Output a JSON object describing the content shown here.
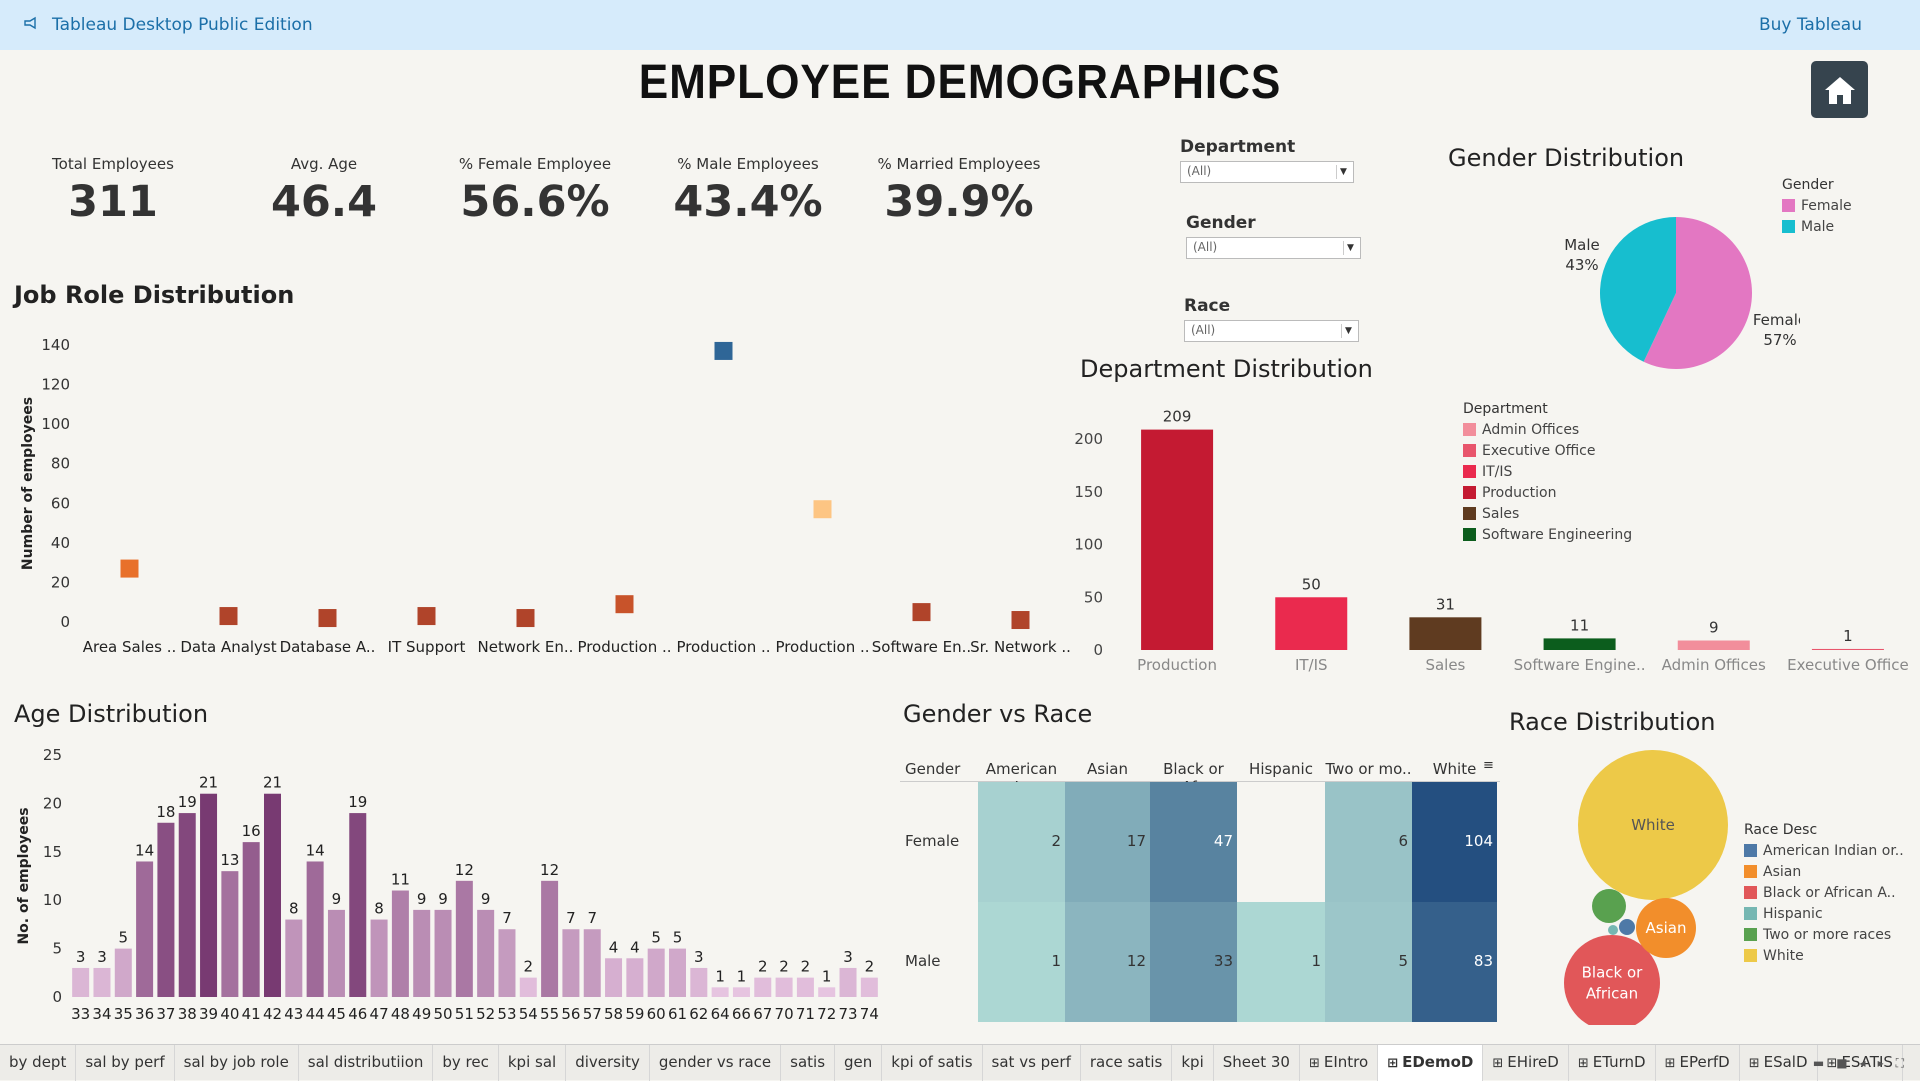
{
  "topbar": {
    "app_title": "Tableau Desktop Public Edition",
    "buy_label": "Buy Tableau"
  },
  "dashboard": {
    "title": "EMPLOYEE DEMOGRAPHICS"
  },
  "kpis": [
    {
      "label": "Total Employees",
      "value": "311"
    },
    {
      "label": "Avg. Age",
      "value": "46.4"
    },
    {
      "label": "% Female Employee",
      "value": "56.6%"
    },
    {
      "label": "% Male Employees",
      "value": "43.4%"
    },
    {
      "label": "% Married Employees",
      "value": "39.9%"
    }
  ],
  "filters": [
    {
      "label": "Department",
      "value": "(All)"
    },
    {
      "label": "Gender",
      "value": "(All)"
    },
    {
      "label": "Race",
      "value": "(All)"
    }
  ],
  "sections": {
    "job_role": "Job Role Distribution",
    "department": "Department Distribution",
    "gender": "Gender Distribution",
    "age": "Age Distribution",
    "gender_race": "Gender vs Race",
    "race": "Race Distribution"
  },
  "legends": {
    "gender": {
      "title": "Gender",
      "items": [
        {
          "label": "Female",
          "color": "#e377c2"
        },
        {
          "label": "Male",
          "color": "#17becf"
        }
      ]
    },
    "department": {
      "title": "Department",
      "items": [
        {
          "label": "Admin Offices",
          "color": "#f28e9b"
        },
        {
          "label": "Executive Office",
          "color": "#e8556c"
        },
        {
          "label": "IT/IS",
          "color": "#ea2a4e"
        },
        {
          "label": "Production",
          "color": "#c41a32"
        },
        {
          "label": "Sales",
          "color": "#5f3b20"
        },
        {
          "label": "Software Engineering",
          "color": "#0c5d1d"
        }
      ]
    },
    "race": {
      "title": "Race Desc",
      "items": [
        {
          "label": "American Indian or..",
          "color": "#4e79a7"
        },
        {
          "label": "Asian",
          "color": "#f28e2b"
        },
        {
          "label": "Black or African A..",
          "color": "#e15759"
        },
        {
          "label": "Hispanic",
          "color": "#76b7b2"
        },
        {
          "label": "Two or more races",
          "color": "#59a14f"
        },
        {
          "label": "White",
          "color": "#edc948"
        }
      ]
    }
  },
  "chart_data": [
    {
      "id": "job_role",
      "type": "scatter",
      "title": "Job Role Distribution",
      "ylabel": "Number of employees",
      "ylim": [
        0,
        140
      ],
      "yticks": [
        0,
        20,
        40,
        60,
        80,
        100,
        120,
        140
      ],
      "categories": [
        "Area Sales ..",
        "Data Analyst",
        "Database A..",
        "IT Support",
        "Network En..",
        "Production ..",
        "Production ..",
        "Production ..",
        "Software En..",
        "Sr. Network .."
      ],
      "values": [
        27,
        3,
        2,
        3,
        2,
        9,
        137,
        57,
        5,
        1
      ],
      "colors": [
        "#e8702a",
        "#b0442a",
        "#b0442a",
        "#b0442a",
        "#b0442a",
        "#c8532a",
        "#2f6697",
        "#fdc583",
        "#b0442a",
        "#b0442a"
      ]
    },
    {
      "id": "department",
      "type": "bar",
      "title": "Department Distribution",
      "ylim": [
        0,
        220
      ],
      "yticks": [
        0,
        50,
        100,
        150,
        200
      ],
      "categories": [
        "Production",
        "IT/IS",
        "Sales",
        "Software Engine..",
        "Admin Offices",
        "Executive Office"
      ],
      "values": [
        209,
        50,
        31,
        11,
        9,
        1
      ],
      "colors": [
        "#c41a32",
        "#ea2a4e",
        "#5f3b20",
        "#0c5d1d",
        "#f28e9b",
        "#e8556c"
      ]
    },
    {
      "id": "gender",
      "type": "pie",
      "title": "Gender Distribution",
      "slices": [
        {
          "label": "Female",
          "value": 57,
          "display": "57%",
          "color": "#e377c2"
        },
        {
          "label": "Male",
          "value": 43,
          "display": "43%",
          "color": "#17becf"
        }
      ]
    },
    {
      "id": "age",
      "type": "bar",
      "title": "Age Distribution",
      "ylabel": "No. of employees",
      "ylim": [
        0,
        25
      ],
      "yticks": [
        0,
        5,
        10,
        15,
        20,
        25
      ],
      "categories": [
        "33",
        "34",
        "35",
        "36",
        "37",
        "38",
        "39",
        "40",
        "41",
        "42",
        "43",
        "44",
        "45",
        "46",
        "47",
        "48",
        "49",
        "50",
        "51",
        "52",
        "53",
        "54",
        "55",
        "56",
        "57",
        "58",
        "59",
        "60",
        "61",
        "62",
        "64",
        "66",
        "67",
        "70",
        "71",
        "72",
        "73",
        "74"
      ],
      "values": [
        3,
        3,
        5,
        14,
        18,
        19,
        21,
        13,
        16,
        21,
        8,
        14,
        9,
        19,
        8,
        11,
        9,
        9,
        12,
        9,
        7,
        2,
        12,
        7,
        7,
        4,
        4,
        5,
        5,
        3,
        1,
        1,
        2,
        2,
        2,
        1,
        3,
        2
      ]
    },
    {
      "id": "gender_race",
      "type": "heatmap",
      "title": "Gender vs Race",
      "row_header": "Gender",
      "columns": [
        "American I..",
        "Asian",
        "Black or Af..",
        "Hispanic",
        "Two or mo..",
        "White"
      ],
      "rows": [
        {
          "label": "Female",
          "values": [
            2,
            17,
            47,
            null,
            6,
            104
          ]
        },
        {
          "label": "Male",
          "values": [
            1,
            12,
            33,
            1,
            5,
            83
          ]
        }
      ]
    },
    {
      "id": "race",
      "type": "bubble",
      "title": "Race Distribution",
      "bubbles": [
        {
          "label": "White",
          "value": 187,
          "color": "#edc948"
        },
        {
          "label": "Black or African",
          "value": 80,
          "color": "#e15759"
        },
        {
          "label": "Asian",
          "value": 29,
          "color": "#f28e2b"
        },
        {
          "label": "Two or more races",
          "value": 11,
          "color": "#59a14f"
        },
        {
          "label": "American Indian or..",
          "value": 3,
          "color": "#4e79a7"
        },
        {
          "label": "Hispanic",
          "value": 1,
          "color": "#76b7b2"
        }
      ]
    }
  ],
  "tabs": [
    {
      "label": "by dept"
    },
    {
      "label": "sal by perf"
    },
    {
      "label": "sal by job role"
    },
    {
      "label": "sal distributiion"
    },
    {
      "label": "by rec"
    },
    {
      "label": "kpi sal"
    },
    {
      "label": "diversity"
    },
    {
      "label": "gender vs race"
    },
    {
      "label": "satis"
    },
    {
      "label": "gen"
    },
    {
      "label": "kpi of satis"
    },
    {
      "label": "sat vs perf"
    },
    {
      "label": "race satis"
    },
    {
      "label": "kpi"
    },
    {
      "label": "Sheet 30"
    },
    {
      "label": "EIntro",
      "icon": "dashboard-icon"
    },
    {
      "label": "EDemoD",
      "icon": "dashboard-icon",
      "active": true
    },
    {
      "label": "EHireD",
      "icon": "dashboard-icon"
    },
    {
      "label": "ETurnD",
      "icon": "dashboard-icon"
    },
    {
      "label": "EPerfD",
      "icon": "dashboard-icon"
    },
    {
      "label": "ESalD",
      "icon": "dashboard-icon"
    },
    {
      "label": "ESATIS",
      "icon": "dashboard-icon"
    }
  ]
}
